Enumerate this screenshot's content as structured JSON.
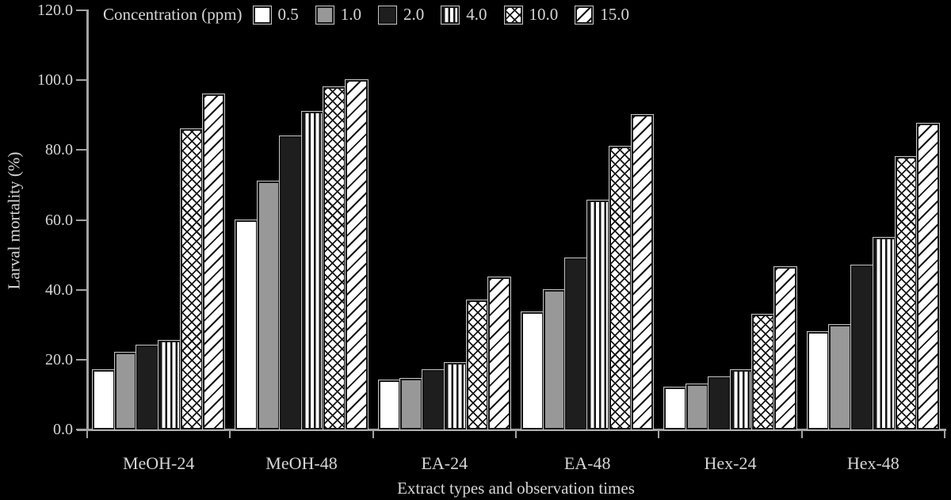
{
  "figure": {
    "background_color": "#000000",
    "text_color": "#d6d6d6",
    "axis_color": "#a3a3a3"
  },
  "chart_data": {
    "type": "bar",
    "title": "",
    "xlabel": "Extract types and observation times",
    "ylabel": "Larval mortality (%)",
    "ylim": [
      0,
      120
    ],
    "ytick_labels": [
      "0.0",
      "20.0",
      "40.0",
      "60.0",
      "80.0",
      "100.0",
      "120.0"
    ],
    "grid": false,
    "legend_title": "Concentration (ppm)",
    "legend_position": "top-left",
    "categories": [
      "MeOH-24",
      "MeOH-48",
      "EA-24",
      "EA-48",
      "Hex-24",
      "Hex-48"
    ],
    "series": [
      {
        "name": "0.5",
        "pattern": "solid-white",
        "values": [
          17,
          60,
          14,
          33.5,
          12,
          28
        ]
      },
      {
        "name": "1.0",
        "pattern": "solid-gray",
        "values": [
          22,
          71,
          14.5,
          40,
          13,
          30
        ]
      },
      {
        "name": "2.0",
        "pattern": "solid-black",
        "values": [
          24,
          84,
          17,
          49,
          15,
          47
        ]
      },
      {
        "name": "4.0",
        "pattern": "vertical-stripes",
        "values": [
          25.5,
          91,
          19,
          65.5,
          17,
          55
        ]
      },
      {
        "name": "10.0",
        "pattern": "crosshatch",
        "values": [
          86,
          98,
          37,
          81,
          33,
          78
        ]
      },
      {
        "name": "15.0",
        "pattern": "diagonal-stripes",
        "values": [
          96,
          100,
          43.5,
          90,
          46.5,
          87.5
        ]
      }
    ]
  }
}
